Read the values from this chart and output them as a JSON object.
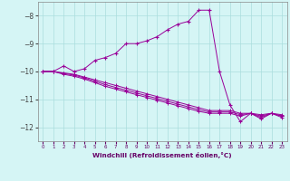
{
  "xlabel": "Windchill (Refroidissement éolien,°C)",
  "x_values": [
    0,
    1,
    2,
    3,
    4,
    5,
    6,
    7,
    8,
    9,
    10,
    11,
    12,
    13,
    14,
    15,
    16,
    17,
    18,
    19,
    20,
    21,
    22,
    23
  ],
  "main_curve": [
    -10.0,
    -10.0,
    -9.8,
    -10.0,
    -9.9,
    -9.6,
    -9.5,
    -9.35,
    -9.0,
    -9.0,
    -8.9,
    -8.75,
    -8.5,
    -8.3,
    -8.2,
    -7.8,
    -7.8,
    -10.0,
    -11.2,
    -11.8,
    -11.5,
    -11.7,
    -11.5,
    -11.6
  ],
  "lower_curves": [
    [
      -10.0,
      -10.0,
      -10.05,
      -10.1,
      -10.2,
      -10.3,
      -10.4,
      -10.5,
      -10.6,
      -10.7,
      -10.8,
      -10.9,
      -11.0,
      -11.1,
      -11.2,
      -11.3,
      -11.4,
      -11.4,
      -11.4,
      -11.5,
      -11.5,
      -11.55,
      -11.5,
      -11.55
    ],
    [
      -10.0,
      -10.0,
      -10.07,
      -10.13,
      -10.23,
      -10.35,
      -10.47,
      -10.57,
      -10.67,
      -10.77,
      -10.87,
      -10.97,
      -11.07,
      -11.17,
      -11.27,
      -11.37,
      -11.45,
      -11.45,
      -11.45,
      -11.55,
      -11.5,
      -11.6,
      -11.5,
      -11.6
    ],
    [
      -10.0,
      -10.0,
      -10.1,
      -10.17,
      -10.27,
      -10.4,
      -10.53,
      -10.63,
      -10.73,
      -10.83,
      -10.93,
      -11.03,
      -11.13,
      -11.23,
      -11.33,
      -11.43,
      -11.5,
      -11.5,
      -11.5,
      -11.6,
      -11.5,
      -11.65,
      -11.5,
      -11.65
    ]
  ],
  "color": "#990099",
  "bg_color": "#d5f5f5",
  "grid_color": "#aadddd",
  "ylim": [
    -12.5,
    -7.5
  ],
  "xlim": [
    -0.5,
    23.5
  ],
  "yticks": [
    -12,
    -11,
    -10,
    -9,
    -8
  ],
  "xticks": [
    0,
    1,
    2,
    3,
    4,
    5,
    6,
    7,
    8,
    9,
    10,
    11,
    12,
    13,
    14,
    15,
    16,
    17,
    18,
    19,
    20,
    21,
    22,
    23
  ],
  "xtick_labels": [
    "0",
    "1",
    "2",
    "3",
    "4",
    "5",
    "6",
    "7",
    "8",
    "9",
    "10",
    "11",
    "12",
    "13",
    "14",
    "15",
    "16",
    "17",
    "18",
    "19",
    "20",
    "21",
    "22",
    "23"
  ]
}
